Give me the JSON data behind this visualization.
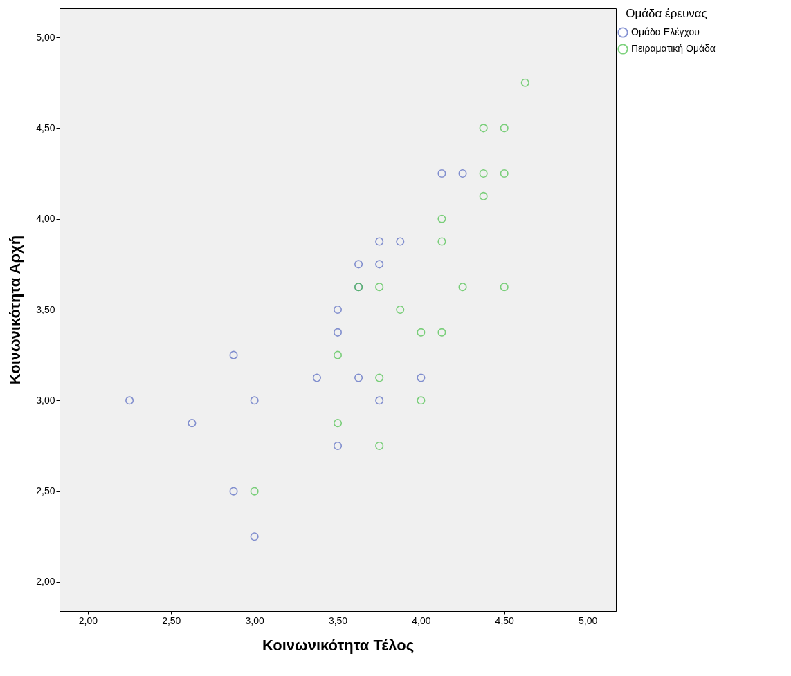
{
  "chart_data": {
    "type": "scatter",
    "xlabel": "Κοινωνικότητα Τέλος",
    "ylabel": "Κοινωνικότητα Αρχή",
    "legend_title": "Ομάδα έρευνας",
    "legend": "top right",
    "marker": "circle",
    "grid": false,
    "xlim": [
      1.83,
      5.17
    ],
    "ylim": [
      1.84,
      5.16
    ],
    "xticks": [
      {
        "value": 2,
        "label": "2,00"
      },
      {
        "value": 2.5,
        "label": "2,50"
      },
      {
        "value": 3,
        "label": "3,00"
      },
      {
        "value": 3.5,
        "label": "3,50"
      },
      {
        "value": 4,
        "label": "4,00"
      },
      {
        "value": 4.5,
        "label": "4,50"
      },
      {
        "value": 5,
        "label": "5,00"
      }
    ],
    "yticks": [
      {
        "value": 2,
        "label": "2,00"
      },
      {
        "value": 2.5,
        "label": "2,50"
      },
      {
        "value": 3,
        "label": "3,00"
      },
      {
        "value": 3.5,
        "label": "3,50"
      },
      {
        "value": 4,
        "label": "4,00"
      },
      {
        "value": 4.5,
        "label": "4,50"
      },
      {
        "value": 5,
        "label": "5,00"
      }
    ],
    "series": [
      {
        "name": "Ομάδα Ελέγχου",
        "color": "#5265c0",
        "x": [
          2.25,
          2.625,
          2.875,
          3,
          2.875,
          3,
          3.375,
          3.5,
          3.5,
          3.5,
          3.625,
          3.625,
          3.625,
          3.75,
          3.75,
          3.75,
          3.875,
          4,
          4.125,
          4.25
        ],
        "values": [
          3,
          2.875,
          3.25,
          3,
          2.5,
          2.25,
          3.125,
          3.5,
          3.375,
          2.75,
          3.75,
          3.625,
          3.125,
          3.875,
          3.75,
          3,
          3.875,
          3.125,
          4.25,
          4.25
        ]
      },
      {
        "name": "Πειραματική Ομάδα",
        "color": "#48c048",
        "x": [
          4.625,
          4.375,
          4.5,
          4.375,
          4.5,
          4.375,
          4.125,
          4.125,
          3.625,
          3.75,
          4.25,
          4.5,
          3.875,
          4,
          4.125,
          3.5,
          3.75,
          4,
          3.5,
          3.75,
          3
        ],
        "values": [
          4.75,
          4.5,
          4.5,
          4.25,
          4.25,
          4.125,
          4,
          3.875,
          3.625,
          3.625,
          3.625,
          3.625,
          3.5,
          3.375,
          3.375,
          3.25,
          3.125,
          3,
          2.875,
          2.75,
          2.5
        ]
      }
    ]
  }
}
